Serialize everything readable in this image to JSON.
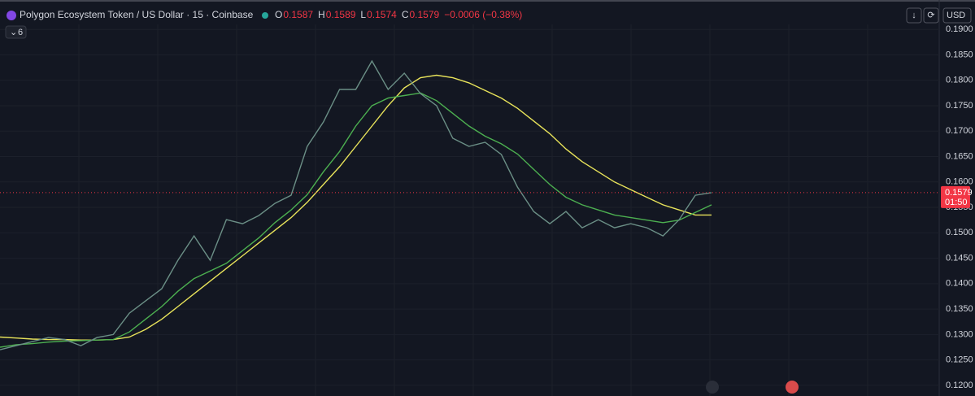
{
  "header": {
    "symbol": "Polygon Ecosystem Token / US Dollar · 15 · Coinbase",
    "ohlc": [
      {
        "key": "O",
        "value": "0.1587"
      },
      {
        "key": "H",
        "value": "0.1589"
      },
      {
        "key": "L",
        "value": "0.1574"
      },
      {
        "key": "C",
        "value": "0.1579"
      }
    ],
    "change": "−0.0006 (−0.38%)",
    "indicators": "6",
    "currency": "USD"
  },
  "chart_data": {
    "type": "line",
    "categories": [
      null,
      null,
      null,
      null,
      null,
      null,
      null,
      null,
      null,
      null,
      null,
      null,
      null,
      null,
      null,
      null,
      null,
      null,
      null,
      null,
      null,
      null,
      null,
      null,
      null,
      null,
      null,
      null,
      null,
      null,
      null,
      null,
      null,
      null,
      null,
      null,
      null,
      null,
      null,
      null,
      null,
      null,
      null,
      null,
      null
    ],
    "series": [
      {
        "color": "#e8e35a",
        "values": [
          0.1295,
          0.1293,
          0.1291,
          0.129,
          0.129,
          0.1289,
          0.1289,
          0.129,
          0.1295,
          0.131,
          0.133,
          0.1355,
          0.138,
          0.1405,
          0.143,
          0.1455,
          0.148,
          0.1505,
          0.153,
          0.156,
          0.1595,
          0.163,
          0.167,
          0.171,
          0.175,
          0.1785,
          0.1805,
          0.181,
          0.1805,
          0.1795,
          0.178,
          0.1765,
          0.1745,
          0.172,
          0.1695,
          0.1665,
          0.164,
          0.162,
          0.16,
          0.1585,
          0.157,
          0.1555,
          0.1545,
          0.1535,
          0.1535
        ]
      },
      {
        "color": "#4caf50",
        "values": [
          0.1275,
          0.128,
          0.1282,
          0.1285,
          0.1287,
          0.1288,
          0.1289,
          0.129,
          0.1305,
          0.133,
          0.1355,
          0.1385,
          0.141,
          0.1425,
          0.144,
          0.1465,
          0.149,
          0.152,
          0.1545,
          0.1575,
          0.162,
          0.166,
          0.171,
          0.175,
          0.1765,
          0.177,
          0.1775,
          0.176,
          0.1735,
          0.171,
          0.169,
          0.1675,
          0.1655,
          0.1625,
          0.1595,
          0.157,
          0.1555,
          0.1545,
          0.1535,
          0.153,
          0.1525,
          0.152,
          0.1525,
          0.154,
          0.1555
        ]
      },
      {
        "color": "#6b8f86",
        "values": [
          0.127,
          0.1278,
          0.1286,
          0.1294,
          0.129,
          0.1278,
          0.1294,
          0.13,
          0.1342,
          0.1366,
          0.139,
          0.1446,
          0.1494,
          0.1446,
          0.1526,
          0.1518,
          0.1534,
          0.1558,
          0.1574,
          0.167,
          0.1718,
          0.1782,
          0.1782,
          0.1838,
          0.1782,
          0.1814,
          0.1774,
          0.175,
          0.1686,
          0.167,
          0.1678,
          0.1654,
          0.159,
          0.1542,
          0.1518,
          0.1542,
          0.151,
          0.1526,
          0.151,
          0.1518,
          0.151,
          0.1494,
          0.1526,
          0.1574,
          0.1579
        ]
      }
    ],
    "ylim": [
      0.1179,
      0.191
    ],
    "yticks": [
      {
        "value": 0.12,
        "label": "0.1200"
      },
      {
        "value": 0.125,
        "label": "0.1250"
      },
      {
        "value": 0.13,
        "label": "0.1300"
      },
      {
        "value": 0.135,
        "label": "0.1350"
      },
      {
        "value": 0.14,
        "label": "0.1400"
      },
      {
        "value": 0.145,
        "label": "0.1450"
      },
      {
        "value": 0.15,
        "label": "0.1500"
      },
      {
        "value": 0.155,
        "label": "0.1550"
      },
      {
        "value": 0.16,
        "label": "0.1600"
      },
      {
        "value": 0.165,
        "label": "0.1650"
      },
      {
        "value": 0.17,
        "label": "0.1700"
      },
      {
        "value": 0.175,
        "label": "0.1750"
      },
      {
        "value": 0.18,
        "label": "0.1800"
      },
      {
        "value": 0.185,
        "label": "0.1850"
      },
      {
        "value": 0.19,
        "label": "0.1900"
      }
    ],
    "grid": true,
    "price_line": {
      "value": 0.1579,
      "label": "0.1579",
      "countdown": "01:50",
      "color": "#f23645"
    }
  }
}
